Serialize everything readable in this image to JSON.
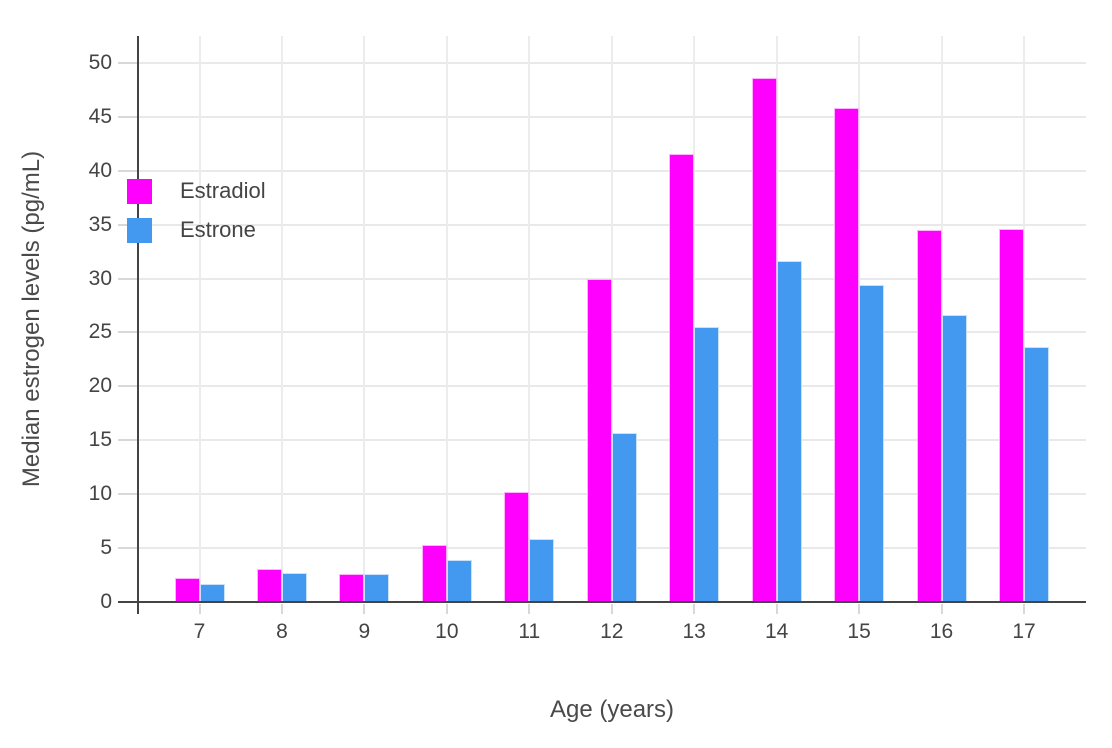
{
  "chart_data": {
    "type": "bar",
    "title": "",
    "xlabel": "Age (years)",
    "ylabel": "Median estrogen levels (pg/mL)",
    "categories": [
      "7",
      "8",
      "9",
      "10",
      "11",
      "12",
      "13",
      "14",
      "15",
      "16",
      "17"
    ],
    "series": [
      {
        "name": "Estradiol",
        "color": "#FF00FE",
        "values": [
          2.2,
          3.1,
          2.6,
          5.3,
          10.2,
          30.0,
          41.6,
          48.6,
          45.8,
          34.5,
          34.6
        ]
      },
      {
        "name": "Estrone",
        "color": "#4398F0",
        "values": [
          1.7,
          2.7,
          2.6,
          3.9,
          5.8,
          15.7,
          25.5,
          31.6,
          29.4,
          26.6,
          23.7
        ]
      }
    ],
    "y_ticks": [
      0,
      5,
      10,
      15,
      20,
      25,
      30,
      35,
      40,
      45,
      50
    ],
    "ylim": [
      0,
      52.5
    ],
    "grid": true,
    "legend_position": "inside-top-left",
    "colors": {
      "axis_text": "#444444",
      "axis_line": "#444444",
      "gridline": "#E9E9E9",
      "tick": "#D8D8D8",
      "bar_outline": "rgba(255,255,255,0.7)"
    }
  }
}
